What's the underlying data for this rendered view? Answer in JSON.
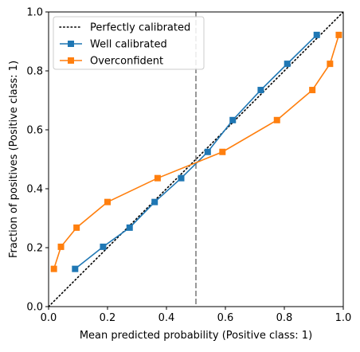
{
  "chart_data": {
    "type": "line",
    "title": "",
    "xlabel": "Mean predicted probability (Positive class: 1)",
    "ylabel": "Fraction of positives (Positive class: 1)",
    "xlim": [
      0,
      1
    ],
    "ylim": [
      0,
      1
    ],
    "xticks": [
      "0.0",
      "0.2",
      "0.4",
      "0.6",
      "0.8",
      "1.0"
    ],
    "yticks": [
      "0.0",
      "0.2",
      "0.4",
      "0.6",
      "0.8",
      "1.0"
    ],
    "grid": false,
    "legend_position": "top-left",
    "reference_line": {
      "name": "Perfectly calibrated",
      "x": [
        0,
        1
      ],
      "y": [
        0,
        1
      ],
      "style": "dotted",
      "color": "#000000"
    },
    "vertical_line": {
      "x": 0.5,
      "style": "dashed",
      "color": "#7f7f7f"
    },
    "series": [
      {
        "name": "Well calibrated",
        "color": "#1f77b4",
        "marker": "square",
        "x": [
          0.09,
          0.185,
          0.275,
          0.36,
          0.45,
          0.54,
          0.625,
          0.72,
          0.81,
          0.91
        ],
        "y": [
          0.128,
          0.203,
          0.268,
          0.355,
          0.436,
          0.525,
          0.633,
          0.735,
          0.824,
          0.922
        ]
      },
      {
        "name": "Overconfident",
        "color": "#ff7f0e",
        "marker": "square",
        "x": [
          0.018,
          0.042,
          0.095,
          0.2,
          0.37,
          0.59,
          0.775,
          0.895,
          0.955,
          0.985
        ],
        "y": [
          0.128,
          0.203,
          0.268,
          0.355,
          0.436,
          0.525,
          0.633,
          0.735,
          0.824,
          0.922
        ]
      }
    ]
  }
}
